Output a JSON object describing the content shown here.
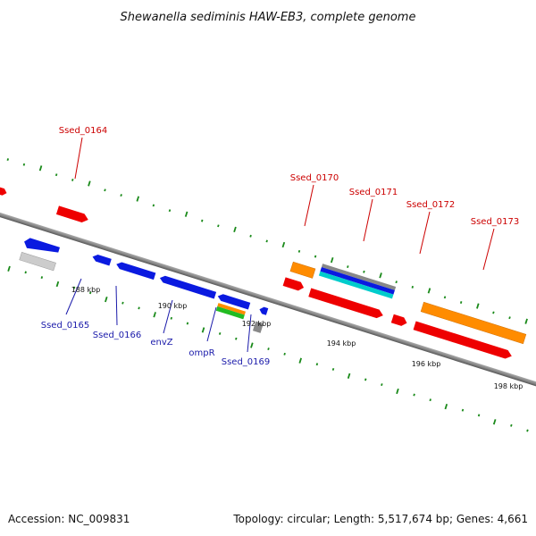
{
  "title": "Shewanella sediminis HAW-EB3, complete genome",
  "footer": {
    "accession": "Accession: NC_009831",
    "summary": "Topology: circular; Length: 5,517,674 bp; Genes: 4,661"
  },
  "colors": {
    "red": "#ee0000",
    "blue": "#0a1ae0",
    "orange": "#ff8c00",
    "green": "#22bb22",
    "cyan": "#00cccc",
    "grey": "#888888",
    "light_grey": "#cccccc",
    "backbone": "#888888",
    "tick_green": "#1a8a1a",
    "label_red": "#cc0000",
    "label_blue": "#1a1aaa"
  },
  "genes_upper": [
    "Ssed_0164",
    "Ssed_0170",
    "Ssed_0171",
    "Ssed_0172",
    "Ssed_0173"
  ],
  "genes_lower": [
    "Ssed_0165",
    "Ssed_0166",
    "envZ",
    "ompR",
    "Ssed_0169"
  ],
  "kbp_labels": [
    "188 kbp",
    "190 kbp",
    "192 kbp",
    "194 kbp",
    "196 kbp",
    "198 kbp"
  ]
}
